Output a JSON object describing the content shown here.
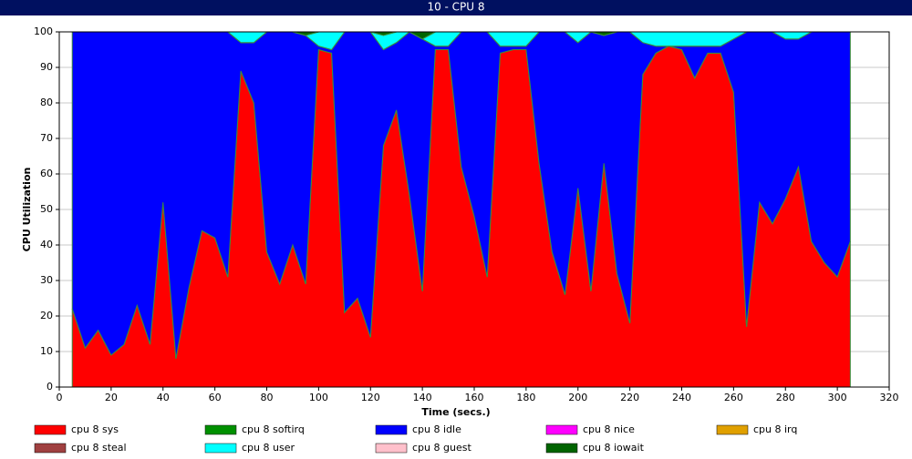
{
  "chart_data": {
    "type": "stacked_area",
    "title": "10 - CPU 8",
    "xlabel": "Time (secs.)",
    "ylabel": "CPU Utilization",
    "x": [
      5,
      10,
      15,
      20,
      25,
      30,
      35,
      40,
      45,
      50,
      55,
      60,
      65,
      70,
      75,
      80,
      85,
      90,
      95,
      100,
      105,
      110,
      115,
      120,
      125,
      130,
      135,
      140,
      145,
      150,
      155,
      160,
      165,
      170,
      175,
      180,
      185,
      190,
      195,
      200,
      205,
      210,
      215,
      220,
      225,
      230,
      235,
      240,
      245,
      250,
      255,
      260,
      265,
      270,
      275,
      280,
      285,
      290,
      295,
      300,
      305
    ],
    "xlim": [
      0,
      320
    ],
    "xticks": [
      0,
      20,
      40,
      60,
      80,
      100,
      120,
      140,
      160,
      180,
      200,
      220,
      240,
      260,
      280,
      300,
      320
    ],
    "ylim": [
      0,
      100
    ],
    "yticks": [
      0,
      10,
      20,
      30,
      40,
      50,
      60,
      70,
      80,
      90,
      100
    ],
    "grid": true,
    "series": [
      {
        "name": "cpu 8 sys",
        "color": "#ff0000",
        "values": [
          22,
          11,
          16,
          9,
          12,
          23,
          12,
          52,
          8,
          28,
          44,
          42,
          31,
          89,
          80,
          38,
          29,
          40,
          29,
          95,
          94,
          21,
          25,
          14,
          68,
          78,
          54,
          27,
          95,
          95,
          62,
          48,
          31,
          94,
          95,
          95,
          63,
          38,
          26,
          56,
          27,
          63,
          32,
          18,
          88,
          94,
          96,
          95,
          87,
          94,
          94,
          83,
          17,
          52,
          46,
          53,
          62,
          41,
          35,
          31,
          41
        ]
      },
      {
        "name": "cpu 8 softirq",
        "color": "#009000",
        "values": [
          0,
          0,
          0,
          0,
          0,
          0,
          0,
          0,
          0,
          0,
          0,
          0,
          0,
          0,
          0,
          0,
          0,
          0,
          0,
          0,
          0,
          0,
          0,
          0,
          0,
          0,
          0,
          0,
          0,
          0,
          0,
          0,
          0,
          0,
          0,
          0,
          0,
          0,
          0,
          0,
          0,
          0,
          0,
          0,
          0,
          0,
          0,
          0,
          0,
          0,
          0,
          0,
          0,
          0,
          0,
          0,
          0,
          0,
          0,
          0,
          0
        ]
      },
      {
        "name": "cpu 8 idle",
        "color": "#0000ff",
        "values": [
          78,
          89,
          84,
          91,
          88,
          77,
          88,
          48,
          92,
          72,
          56,
          58,
          69,
          8,
          17,
          62,
          71,
          60,
          70,
          1,
          1,
          79,
          75,
          86,
          27,
          19,
          46,
          71,
          1,
          1,
          38,
          52,
          69,
          2,
          1,
          1,
          37,
          62,
          74,
          41,
          73,
          36,
          68,
          82,
          9,
          2,
          0,
          1,
          9,
          2,
          2,
          15,
          83,
          48,
          54,
          45,
          36,
          59,
          65,
          69,
          59
        ]
      },
      {
        "name": "cpu 8 nice",
        "color": "#ff00ff",
        "values": [
          0,
          0,
          0,
          0,
          0,
          0,
          0,
          0,
          0,
          0,
          0,
          0,
          0,
          0,
          0,
          0,
          0,
          0,
          0,
          0,
          0,
          0,
          0,
          0,
          0,
          0,
          0,
          0,
          0,
          0,
          0,
          0,
          0,
          0,
          0,
          0,
          0,
          0,
          0,
          0,
          0,
          0,
          0,
          0,
          0,
          0,
          0,
          0,
          0,
          0,
          0,
          0,
          0,
          0,
          0,
          0,
          0,
          0,
          0,
          0,
          0
        ]
      },
      {
        "name": "cpu 8 irq",
        "color": "#e0a000",
        "values": [
          0,
          0,
          0,
          0,
          0,
          0,
          0,
          0,
          0,
          0,
          0,
          0,
          0,
          0,
          0,
          0,
          0,
          0,
          0,
          0,
          0,
          0,
          0,
          0,
          0,
          0,
          0,
          0,
          0,
          0,
          0,
          0,
          0,
          0,
          0,
          0,
          0,
          0,
          0,
          0,
          0,
          0,
          0,
          0,
          0,
          0,
          0,
          0,
          0,
          0,
          0,
          0,
          0,
          0,
          0,
          0,
          0,
          0,
          0,
          0,
          0
        ]
      },
      {
        "name": "cpu 8 steal",
        "color": "#a04040",
        "values": [
          0,
          0,
          0,
          0,
          0,
          0,
          0,
          0,
          0,
          0,
          0,
          0,
          0,
          0,
          0,
          0,
          0,
          0,
          0,
          0,
          0,
          0,
          0,
          0,
          0,
          0,
          0,
          0,
          0,
          0,
          0,
          0,
          0,
          0,
          0,
          0,
          0,
          0,
          0,
          0,
          0,
          0,
          0,
          0,
          0,
          0,
          0,
          0,
          0,
          0,
          0,
          0,
          0,
          0,
          0,
          0,
          0,
          0,
          0,
          0,
          0
        ]
      },
      {
        "name": "cpu 8 user",
        "color": "#00ffff",
        "values": [
          0,
          0,
          0,
          0,
          0,
          0,
          0,
          0,
          0,
          0,
          0,
          0,
          0,
          3,
          3,
          0,
          0,
          0,
          0,
          4,
          5,
          0,
          0,
          0,
          4,
          3,
          0,
          0,
          4,
          4,
          0,
          0,
          0,
          4,
          4,
          4,
          0,
          0,
          0,
          3,
          0,
          0,
          0,
          0,
          3,
          4,
          4,
          4,
          4,
          4,
          4,
          2,
          0,
          0,
          0,
          2,
          2,
          0,
          0,
          0,
          0
        ]
      },
      {
        "name": "cpu 8 guest",
        "color": "#ffc0cb",
        "values": [
          0,
          0,
          0,
          0,
          0,
          0,
          0,
          0,
          0,
          0,
          0,
          0,
          0,
          0,
          0,
          0,
          0,
          0,
          0,
          0,
          0,
          0,
          0,
          0,
          0,
          0,
          0,
          0,
          0,
          0,
          0,
          0,
          0,
          0,
          0,
          0,
          0,
          0,
          0,
          0,
          0,
          0,
          0,
          0,
          0,
          0,
          0,
          0,
          0,
          0,
          0,
          0,
          0,
          0,
          0,
          0,
          0,
          0,
          0,
          0,
          0
        ]
      },
      {
        "name": "cpu 8 iowait",
        "color": "#006400",
        "values": [
          0,
          0,
          0,
          0,
          0,
          0,
          0,
          0,
          0,
          0,
          0,
          0,
          0,
          0,
          0,
          0,
          0,
          0,
          1,
          0,
          0,
          0,
          0,
          0,
          1,
          0,
          0,
          2,
          0,
          0,
          0,
          0,
          0,
          0,
          0,
          0,
          0,
          0,
          0,
          0,
          0,
          1,
          0,
          0,
          0,
          0,
          0,
          0,
          0,
          0,
          0,
          0,
          0,
          0,
          0,
          0,
          0,
          0,
          0,
          0,
          0
        ]
      }
    ]
  }
}
